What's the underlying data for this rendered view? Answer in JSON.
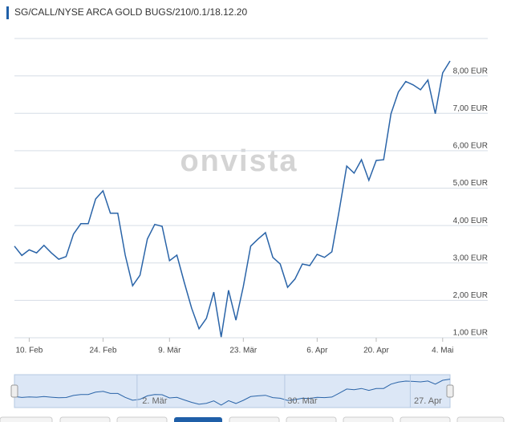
{
  "chart_data": {
    "type": "line",
    "title": "SG/CALL/NYSE ARCA GOLD BUGS/210/0.1/18.12.20",
    "watermark": "onvista",
    "series": [
      {
        "name": "SG/CALL/NYSE ARCA GOLD BUGS/210/0.1/18.12.20",
        "color": "#2a64a8",
        "values": [
          3.45,
          3.2,
          3.35,
          3.27,
          3.47,
          3.27,
          3.1,
          3.17,
          3.77,
          4.05,
          4.05,
          4.71,
          4.93,
          4.33,
          4.33,
          3.21,
          2.39,
          2.67,
          3.64,
          4.03,
          3.98,
          3.06,
          3.21,
          2.48,
          1.79,
          1.24,
          1.52,
          2.22,
          1.02,
          2.27,
          1.47,
          2.37,
          3.45,
          3.64,
          3.81,
          3.15,
          2.97,
          2.35,
          2.57,
          2.97,
          2.93,
          3.23,
          3.15,
          3.3,
          4.41,
          5.59,
          5.4,
          5.76,
          5.21,
          5.74,
          5.76,
          6.99,
          7.57,
          7.85,
          7.76,
          7.63,
          7.89,
          6.99,
          8.08,
          8.4
        ]
      }
    ],
    "xlim": [
      0,
      59
    ],
    "xticks": [
      {
        "value": 2,
        "label": "10. Feb"
      },
      {
        "value": 12,
        "label": "24. Feb"
      },
      {
        "value": 21,
        "label": "9. Mär"
      },
      {
        "value": 31,
        "label": "23. Mär"
      },
      {
        "value": 41,
        "label": "6. Apr"
      },
      {
        "value": 49,
        "label": "20. Apr"
      },
      {
        "value": 58,
        "label": "4. Mai"
      }
    ],
    "ylim": [
      1,
      9
    ],
    "yticks": [
      {
        "value": 1,
        "label": "1,00 EUR"
      },
      {
        "value": 2,
        "label": "2,00 EUR"
      },
      {
        "value": 3,
        "label": "3,00 EUR"
      },
      {
        "value": 4,
        "label": "4,00 EUR"
      },
      {
        "value": 5,
        "label": "5,00 EUR"
      },
      {
        "value": 6,
        "label": "6,00 EUR"
      },
      {
        "value": 7,
        "label": "7,00 EUR"
      },
      {
        "value": 8,
        "label": "8,00 EUR"
      },
      9
    ],
    "grid": true,
    "navigator": {
      "labels": [
        {
          "value": 19,
          "label": "2. Mär"
        },
        {
          "value": 39,
          "label": "30. Mär"
        },
        {
          "value": 56,
          "label": "27. Apr"
        }
      ]
    }
  }
}
